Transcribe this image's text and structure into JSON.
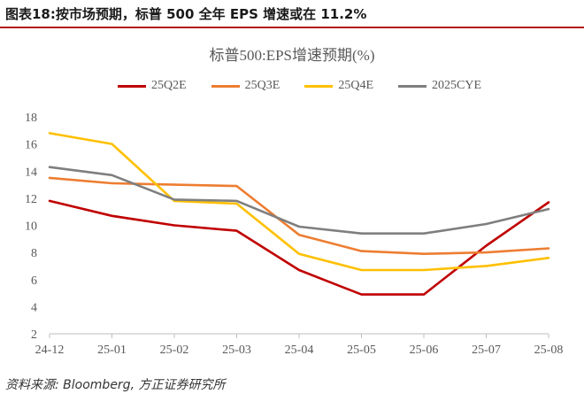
{
  "figure": {
    "title": "图表18:按市场预期，标普 500 全年 EPS 增速或在 11.2%",
    "source": "资料来源: Bloomberg, 方正证券研究所"
  },
  "colors": {
    "accent_rule": "#b01c1c",
    "axis": "#bfbfbf",
    "text": "#595959"
  },
  "chart_data": {
    "type": "line",
    "title": "标普500:EPS增速预期(%)",
    "categories": [
      "24-12",
      "25-01",
      "25-02",
      "25-03",
      "25-04",
      "25-05",
      "25-06",
      "25-07",
      "25-08"
    ],
    "ylim": [
      2,
      18
    ],
    "yticks": [
      2,
      4,
      6,
      8,
      10,
      12,
      14,
      16,
      18
    ],
    "grid": false,
    "legend_position": "top",
    "series": [
      {
        "name": "25Q2E",
        "color": "#c00000",
        "values": [
          11.8,
          10.7,
          10.0,
          9.6,
          6.7,
          4.9,
          4.9,
          8.5,
          11.7
        ]
      },
      {
        "name": "25Q3E",
        "color": "#ed7d31",
        "values": [
          13.5,
          13.1,
          13.0,
          12.9,
          9.3,
          8.1,
          7.9,
          8.0,
          8.3
        ]
      },
      {
        "name": "25Q4E",
        "color": "#ffc000",
        "values": [
          16.8,
          16.0,
          11.8,
          11.6,
          7.9,
          6.7,
          6.7,
          7.0,
          7.6
        ]
      },
      {
        "name": "2025CYE",
        "color": "#7f7f7f",
        "values": [
          14.3,
          13.7,
          11.9,
          11.8,
          9.9,
          9.4,
          9.4,
          10.1,
          11.2
        ]
      }
    ]
  }
}
